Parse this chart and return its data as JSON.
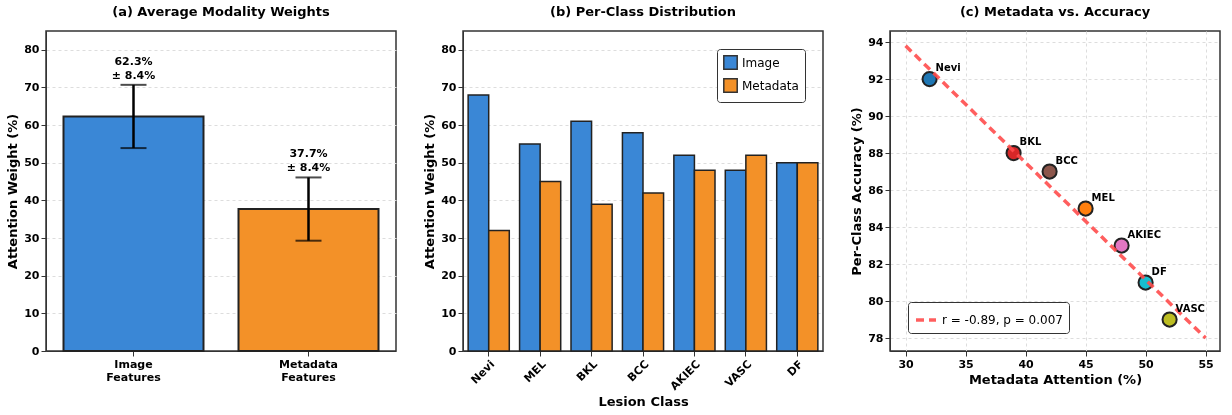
{
  "chart_data": [
    {
      "type": "bar",
      "title": "(a) Average Modality Weights",
      "ylabel": "Attention Weight (%)",
      "categories": [
        "Image Features",
        "Metadata Features"
      ],
      "values": [
        62.3,
        37.7
      ],
      "colors": [
        "#3a87d6",
        "#f39128"
      ],
      "errors": [
        8.4,
        8.4
      ],
      "value_labels": [
        "62.3%\n± 8.4%",
        "37.7%\n± 8.4%"
      ],
      "ylim": [
        0,
        85
      ],
      "yticks": [
        0,
        10,
        20,
        30,
        40,
        50,
        60,
        70,
        80
      ],
      "grid": "y"
    },
    {
      "type": "bar",
      "title": "(b) Per-Class Distribution",
      "xlabel": "Lesion Class",
      "ylabel": "Attention Weight (%)",
      "categories": [
        "Nevi",
        "MEL",
        "BKL",
        "BCC",
        "AKIEC",
        "VASC",
        "DF"
      ],
      "series": [
        {
          "name": "Image",
          "color": "#3a87d6",
          "values": [
            68,
            55,
            61,
            58,
            52,
            48,
            50
          ]
        },
        {
          "name": "Metadata",
          "color": "#f39128",
          "values": [
            32,
            45,
            39,
            42,
            48,
            52,
            50
          ]
        }
      ],
      "ylim": [
        0,
        85
      ],
      "yticks": [
        0,
        10,
        20,
        30,
        40,
        50,
        60,
        70,
        80
      ],
      "grid": "y",
      "legend": "top right"
    },
    {
      "type": "scatter",
      "title": "(c) Metadata vs. Accuracy",
      "xlabel": "Metadata Attention (%)",
      "ylabel": "Per-Class Accuracy (%)",
      "series": [
        {
          "type": "scatter",
          "marker": "circle",
          "x": [
            32,
            39,
            42,
            45,
            48,
            50,
            52
          ],
          "values": [
            92,
            88,
            87,
            85,
            83,
            81,
            79
          ],
          "colors": [
            "#1f77b4",
            "#d62728",
            "#8c564b",
            "#ff7f0e",
            "#e377c2",
            "#17becf",
            "#bcbd22"
          ]
        },
        {
          "type": "line",
          "name": "r = -0.89, p = 0.007",
          "color": "#ff4d4d",
          "line_style": "dashed",
          "x": [
            30,
            55
          ],
          "values": [
            93.8,
            78.0
          ]
        }
      ],
      "annotations": [
        {
          "text": "Nevi",
          "x": 32,
          "y": 92
        },
        {
          "text": "BKL",
          "x": 39,
          "y": 88
        },
        {
          "text": "BCC",
          "x": 42,
          "y": 87
        },
        {
          "text": "MEL",
          "x": 45,
          "y": 85
        },
        {
          "text": "AKIEC",
          "x": 48,
          "y": 83
        },
        {
          "text": "DF",
          "x": 50,
          "y": 81
        },
        {
          "text": "VASC",
          "x": 52,
          "y": 79
        }
      ],
      "xlim": [
        28.7,
        56.2
      ],
      "ylim": [
        77.3,
        94.6
      ],
      "xticks": [
        30,
        35,
        40,
        45,
        50,
        55
      ],
      "yticks": [
        78,
        80,
        82,
        84,
        86,
        88,
        90,
        92,
        94
      ],
      "grid": true,
      "legend": "bottom left"
    }
  ]
}
